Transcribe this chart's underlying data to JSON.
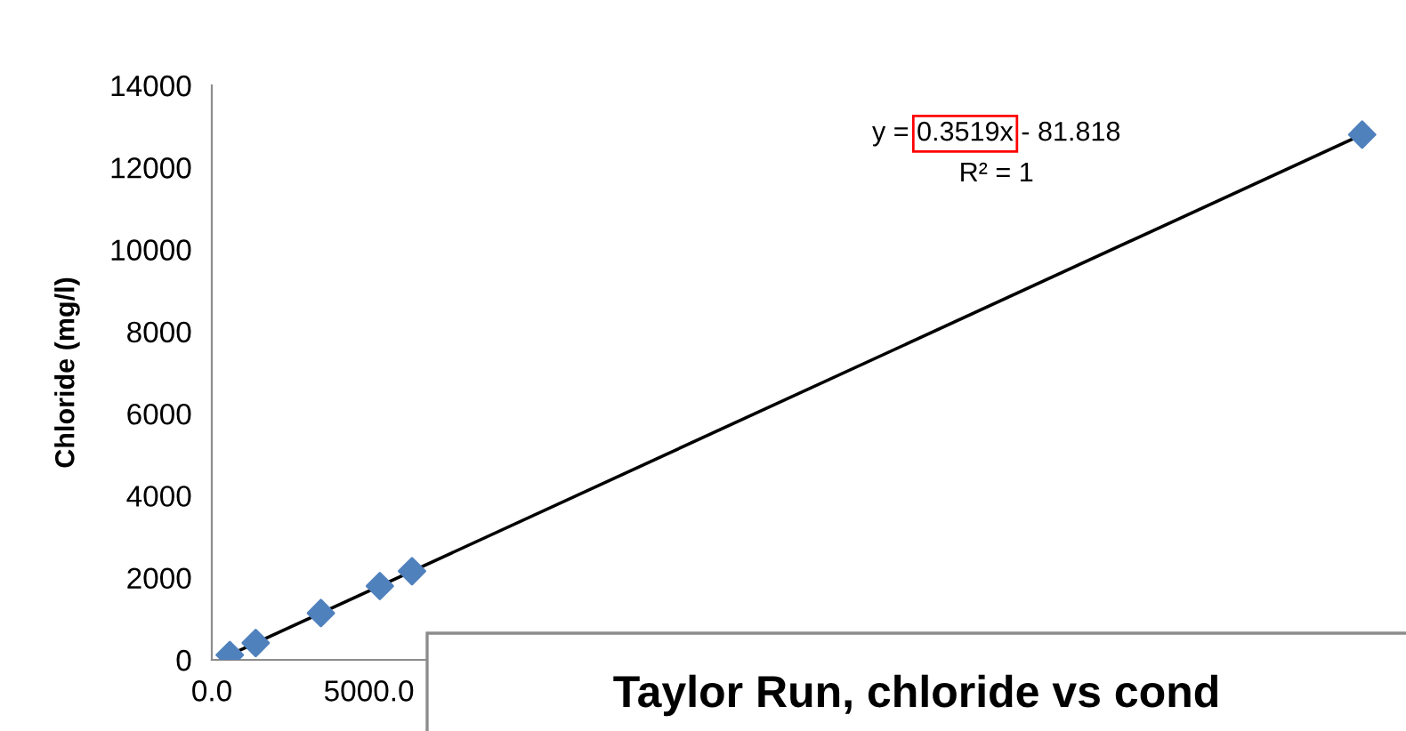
{
  "chart_data": {
    "type": "scatter",
    "title": "Taylor Run, chloride vs cond",
    "ylabel": "Chloride (mg/l)",
    "x": [
      573,
      1398,
      3472,
      5348,
      6371,
      36606
    ],
    "series": [
      {
        "color": "#4f81bd",
        "values": [
          120,
          410,
          1140,
          1800,
          2160,
          12800
        ],
        "marker": "diamond"
      },
      {
        "type": "line",
        "color": "#000000",
        "x": [
          573,
          36606
        ],
        "values": [
          120,
          12800
        ],
        "marker": "none"
      }
    ],
    "xlim": [
      0,
      38000
    ],
    "xticks": [
      {
        "value": 0,
        "label": "0.0"
      },
      {
        "value": 5000,
        "label": "5000.0"
      }
    ],
    "ylim": [
      0,
      14000
    ],
    "yticks": [
      0,
      2000,
      4000,
      6000,
      8000,
      10000,
      12000,
      14000
    ],
    "annotations": [
      "y = 0.3519x - 81.818",
      "R² = 1"
    ],
    "grid": false,
    "legend": false
  }
}
